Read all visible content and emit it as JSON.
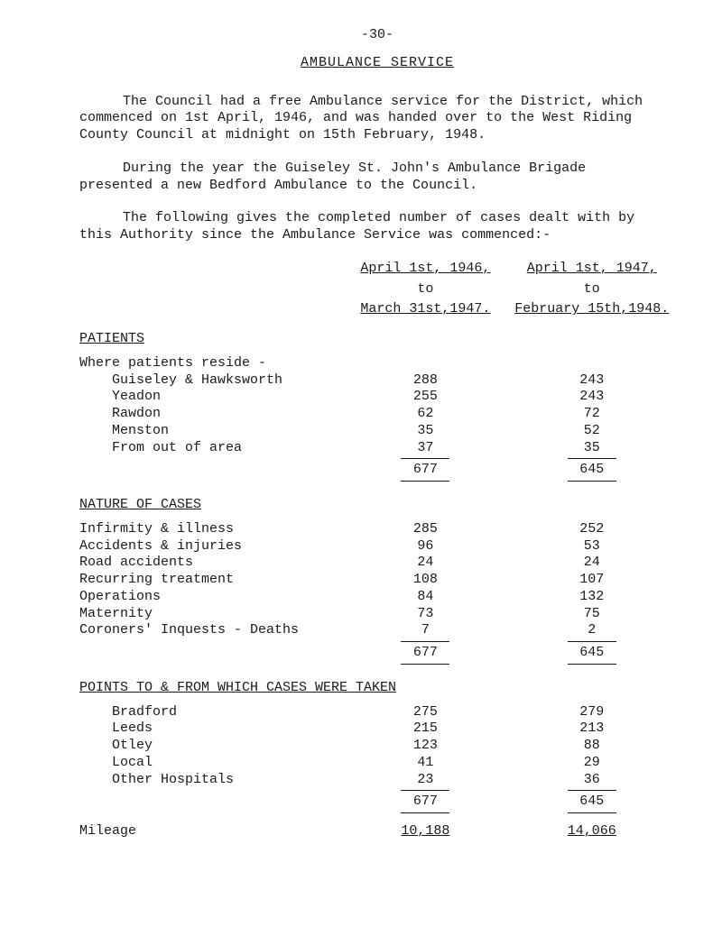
{
  "page_number": "-30-",
  "heading": "AMBULANCE   SERVICE",
  "para1": "The Council had a free Ambulance service for the District, which commenced on 1st April, 1946, and was handed over to the West Riding County Council at midnight on 15th February, 1948.",
  "para2": "During the year the Guiseley St. John's Ambulance Brigade presented a new Bedford Ambulance to the Council.",
  "para3": "The following gives the completed number of cases dealt with by this Authority since the Ambulance Service was commenced:-",
  "col_a": {
    "line1": "April 1st, 1946,",
    "line2": "to",
    "line3": "March 31st,1947."
  },
  "col_b": {
    "line1": "April 1st, 1947,",
    "line2": "to",
    "line3": "February 15th,1948."
  },
  "patients": {
    "title": "PATIENTS",
    "intro": "Where patients reside -",
    "rows": [
      {
        "label": "    Guiseley & Hawksworth",
        "a": "288",
        "b": "243"
      },
      {
        "label": "    Yeadon",
        "a": "255",
        "b": "243"
      },
      {
        "label": "    Rawdon",
        "a": "62",
        "b": "72"
      },
      {
        "label": "    Menston",
        "a": "35",
        "b": "52"
      },
      {
        "label": "    From out of area",
        "a": "37",
        "b": "35"
      }
    ],
    "total": {
      "a": "677",
      "b": "645"
    }
  },
  "nature": {
    "title": "NATURE OF CASES",
    "rows": [
      {
        "label": "Infirmity & illness",
        "a": "285",
        "b": "252"
      },
      {
        "label": "Accidents & injuries",
        "a": "96",
        "b": "53"
      },
      {
        "label": "Road accidents",
        "a": "24",
        "b": "24"
      },
      {
        "label": "Recurring treatment",
        "a": "108",
        "b": "107"
      },
      {
        "label": "Operations",
        "a": "84",
        "b": "132"
      },
      {
        "label": "Maternity",
        "a": "73",
        "b": "75"
      },
      {
        "label": "Coroners' Inquests - Deaths",
        "a": "7",
        "b": "2"
      }
    ],
    "total": {
      "a": "677",
      "b": "645"
    }
  },
  "points": {
    "title": "POINTS TO & FROM WHICH CASES WERE TAKEN",
    "rows": [
      {
        "label": "    Bradford",
        "a": "275",
        "b": "279"
      },
      {
        "label": "    Leeds",
        "a": "215",
        "b": "213"
      },
      {
        "label": "    Otley",
        "a": "123",
        "b": "88"
      },
      {
        "label": "    Local",
        "a": "41",
        "b": "29"
      },
      {
        "label": "    Other Hospitals",
        "a": "23",
        "b": "36"
      }
    ],
    "total": {
      "a": "677",
      "b": "645"
    }
  },
  "mileage": {
    "label": "Mileage",
    "a": "10,188",
    "b": "14,066"
  }
}
